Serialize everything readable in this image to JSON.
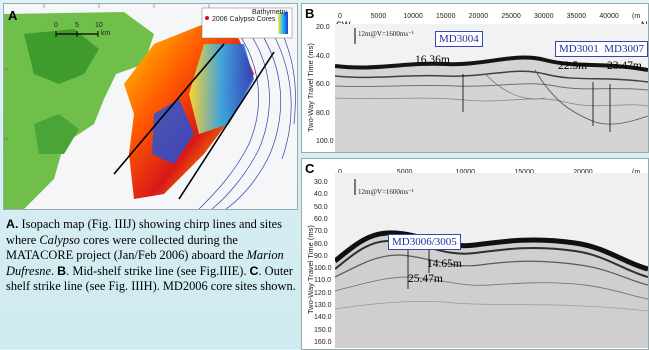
{
  "panel_a": {
    "label": "A",
    "legend_title": "Bathymetry",
    "legend_site": "2006 Calypso Cores",
    "scale_marks": [
      "0",
      "5",
      "10"
    ],
    "scale_unit": "km"
  },
  "caption": {
    "a_label": "A.",
    "a_text1": " Isopach map (Fig. IIIJ) showing chirp lines and sites where ",
    "a_italic": "Calypso",
    "a_text2": " cores were collected during the MATACORE project (Jan/Feb 2006) aboard the ",
    "ship": "Marion Dufresne",
    "b_label": "B",
    "b_text": ". Mid-shelf strike line (see Fig.IIIE). ",
    "c_label": "C",
    "c_text": ". Outer shelf strike line (see Fig. IIIH).  MD2006 core sites shown."
  },
  "panel_b": {
    "label": "B",
    "sw": "SW",
    "ne": "N",
    "ylabel": "Two-Way Travel Time (ms)",
    "scale_note": "12m@V=1600ms⁻¹",
    "x_ticks": [
      "0",
      "5000",
      "10000",
      "15000",
      "20000",
      "25000",
      "30000",
      "35000",
      "40000",
      "(m"
    ],
    "y_ticks": [
      "20.0",
      "40.0",
      "60.0",
      "80.0",
      "100.0"
    ],
    "cores": [
      {
        "name": "MD3004",
        "depth": "16.36m"
      },
      {
        "name": "MD3001",
        "depth": "22.5m"
      },
      {
        "name": "MD3007",
        "depth": "23.47m"
      }
    ]
  },
  "panel_c": {
    "label": "C",
    "sw": "SW",
    "ne": "N",
    "ylabel": "Two-Way Travel Time (ms)",
    "scale_note": "12m@V=1600ms⁻¹",
    "x_ticks": [
      "0",
      "5000",
      "10000",
      "15000",
      "20000",
      "(m"
    ],
    "y_ticks": [
      "30.0",
      "40.0",
      "50.0",
      "60.0",
      "70.0",
      "80.0",
      "90.0",
      "100.0",
      "110.0",
      "120.0",
      "130.0",
      "140.0",
      "150.0",
      "160.0"
    ],
    "cores": [
      {
        "name": "MD3006/3005",
        "depth_a": "14.65m",
        "depth_b": "25.47m"
      }
    ]
  }
}
